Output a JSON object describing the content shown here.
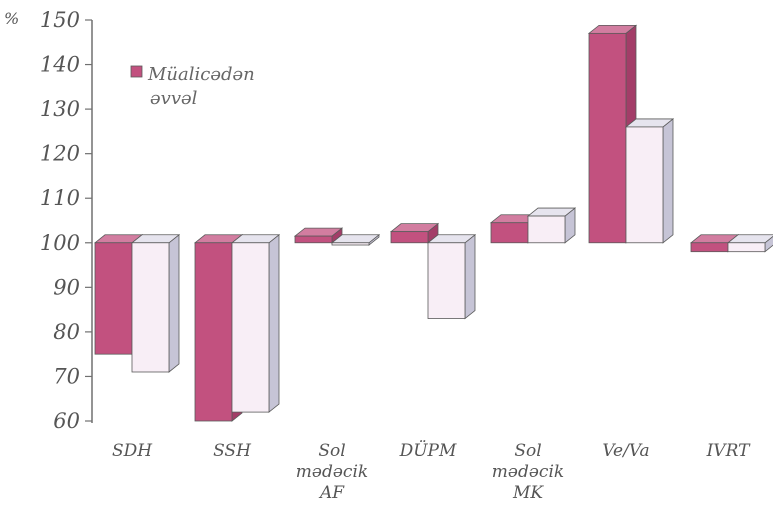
{
  "chart_data": {
    "type": "bar",
    "unit": "%",
    "categories": [
      [
        "SDH"
      ],
      [
        "SSH"
      ],
      [
        "Sol",
        "mədəcik",
        "AF"
      ],
      [
        "DÜPM"
      ],
      [
        "Sol",
        "mədəcik",
        "MK"
      ],
      [
        "Ve/Va"
      ],
      [
        "IVRT"
      ]
    ],
    "baseline": 100,
    "ylim": [
      60,
      150
    ],
    "yticks": [
      60,
      70,
      80,
      90,
      100,
      110,
      120,
      130,
      140,
      150
    ],
    "series": [
      {
        "name": "Müalicədən əvvəl",
        "values": [
          75,
          60,
          101.5,
          102.5,
          104.5,
          147,
          98
        ]
      },
      {
        "name": "",
        "values": [
          71,
          62,
          99.5,
          83,
          106,
          126,
          98
        ]
      }
    ],
    "colors": {
      "series1_front": "#c2517f",
      "series1_side": "#a33d68",
      "series1_top": "#d27da0",
      "series2_front": "#f8eef6",
      "series2_side": "#c6c4d6",
      "series2_top": "#e6e4ee",
      "outline": "#5a5a5a",
      "axis": "#707070"
    },
    "legend": {
      "position": "top-left"
    }
  }
}
